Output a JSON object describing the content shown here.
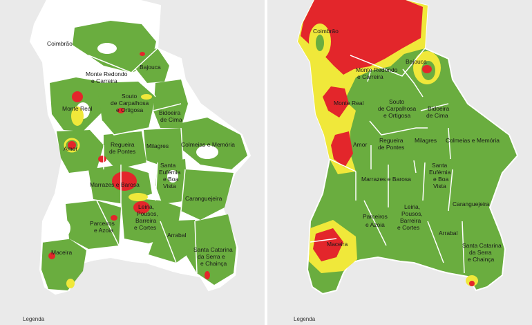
{
  "legend_label": "Legenda",
  "colors": {
    "green": "#6aad3f",
    "yellow": "#f0e83a",
    "red": "#e3262b",
    "white": "#ffffff",
    "background": "#eaeaea",
    "border": "#ffffff"
  },
  "maps": [
    {
      "id": "left",
      "labels": {
        "coimbrao": "Coimbrão",
        "monte_redondo_1": "Monte Redondo",
        "monte_redondo_2": "e Carreira",
        "bajouca": "Bajouca",
        "monte_real": "Monte Real",
        "souto_1": "Souto",
        "souto_2": "de Carpalhosa",
        "souto_3": "e Ortigosa",
        "bidoeira_1": "Bidoeira",
        "bidoeira_2": "de Cima",
        "amor": "Amor",
        "regueira_1": "Regueira",
        "regueira_2": "de Pontes",
        "milagres": "Milagres",
        "colmeias": "Colmeias e Memória",
        "santa_eufemia_1": "Santa",
        "santa_eufemia_2": "Eufémia",
        "santa_eufemia_3": "e Boa",
        "santa_eufemia_4": "Vista",
        "marrazes": "Marrazes e Barosa",
        "caranguejeira": "Caranguejeira",
        "leiria_1": "Leiria,",
        "leiria_2": "Pousos,",
        "leiria_3": "Barreira",
        "leiria_4": "e Cortes",
        "parceiros_1": "Parceiros",
        "parceiros_2": "e Azoia",
        "arrabal": "Arrabal",
        "maceira": "Maceira",
        "santa_catarina_1": "Santa Catarina",
        "santa_catarina_2": "da Serra e",
        "santa_catarina_3": "e Chainça"
      }
    },
    {
      "id": "right",
      "labels": {
        "coimbrao": "Coimbrão",
        "monte_redondo_1": "Monte Redondo",
        "monte_redondo_2": "e Carreira",
        "bajouca": "Bajouca",
        "monte_real": "Monte Real",
        "souto_1": "Souto",
        "souto_2": "de Carpalhosa",
        "souto_3": "e Ortigosa",
        "bidoeira_1": "Bidoeira",
        "bidoeira_2": "de Cima",
        "amor": "Amor",
        "regueira_1": "Regueira",
        "regueira_2": "de Pontes",
        "milagres": "Milagres",
        "colmeias": "Colmeias e Memória",
        "santa_eufemia_1": "Santa",
        "santa_eufemia_2": "Eufémia",
        "santa_eufemia_3": "e Boa",
        "santa_eufemia_4": "Vista",
        "marrazes": "Marrazes e Barosa",
        "caranguejeira": "Caranguejeira",
        "leiria_1": "Leiria,",
        "leiria_2": "Pousos,",
        "leiria_3": "Barreira",
        "leiria_4": "e Cortes",
        "parceiros_1": "Parceiros",
        "parceiros_2": "e Azoia",
        "arrabal": "Arrabal",
        "maceira": "Maceira",
        "santa_catarina_1": "Santa Catarina",
        "santa_catarina_2": "da Serra",
        "santa_catarina_3": "e Chainça"
      }
    }
  ]
}
